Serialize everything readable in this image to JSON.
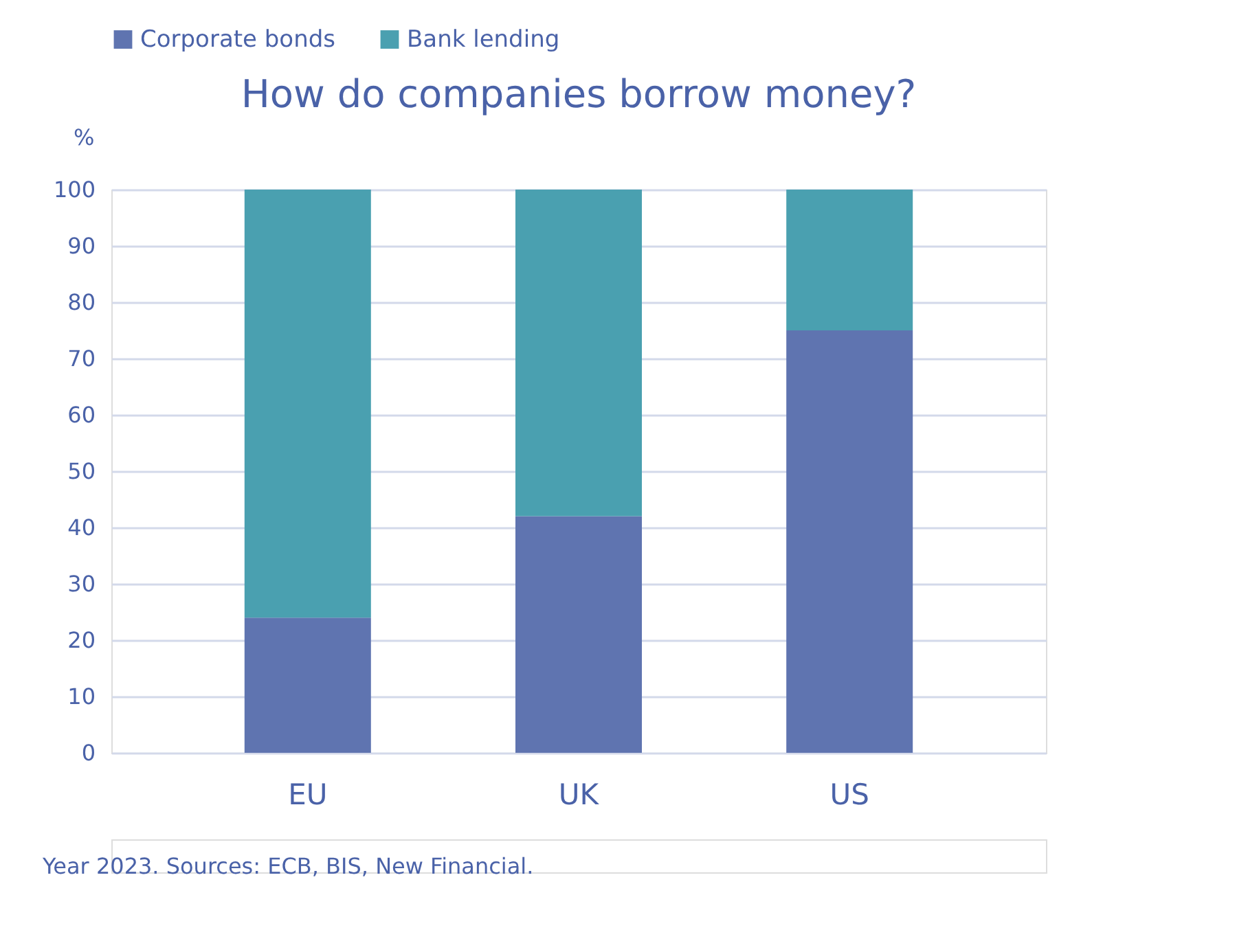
{
  "chart_data": {
    "type": "bar",
    "title": "How do companies borrow money?",
    "ylabel": "%",
    "categories": [
      "EU",
      "UK",
      "US"
    ],
    "series": [
      {
        "name": "Corporate bonds",
        "color": "#5f74b0",
        "values": [
          24,
          42,
          75
        ]
      },
      {
        "name": "Bank lending",
        "color": "#4aa0b0",
        "values": [
          76,
          58,
          25
        ]
      }
    ],
    "stacked": true,
    "ylim": [
      0,
      100
    ],
    "yticks": [
      0,
      10,
      20,
      30,
      40,
      50,
      60,
      70,
      80,
      90,
      100
    ],
    "grid": "y",
    "legend": "top",
    "annotations": [
      "Year 2023. Sources: ECB, BIS, New Financial."
    ]
  }
}
